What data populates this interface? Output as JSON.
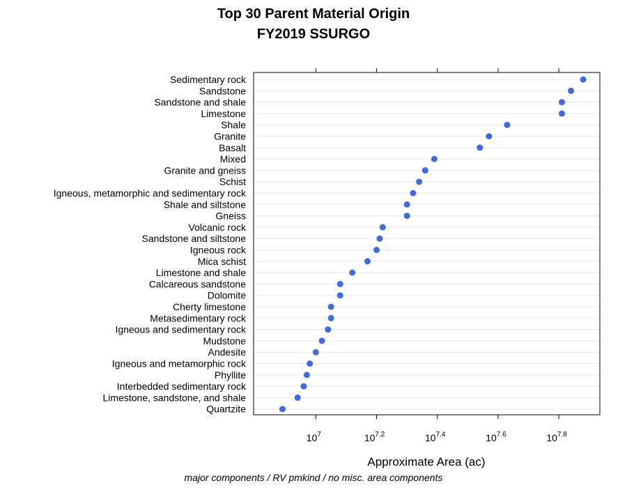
{
  "chart_data": {
    "type": "scatter",
    "title": "Top 30 Parent Material Origin",
    "subtitle": "FY2019 SSURGO",
    "xlabel": "Approximate Area (ac)",
    "ylabel": "",
    "note": "major components / RV pmkind / no misc. area components",
    "x_scale": "log10",
    "xlim_log10": [
      6.795,
      7.935
    ],
    "x_ticks": [
      {
        "base": "10",
        "exp": "7",
        "log10": 7.0
      },
      {
        "base": "10",
        "exp": "7.2",
        "log10": 7.2
      },
      {
        "base": "10",
        "exp": "7.4",
        "log10": 7.4
      },
      {
        "base": "10",
        "exp": "7.6",
        "log10": 7.6
      },
      {
        "base": "10",
        "exp": "7.8",
        "log10": 7.8
      }
    ],
    "grid": "horizontal",
    "point_color": "#4169e1",
    "categories": [
      "Sedimentary rock",
      "Sandstone",
      "Sandstone and shale",
      "Limestone",
      "Shale",
      "Granite",
      "Basalt",
      "Mixed",
      "Granite and gneiss",
      "Schist",
      "Igneous, metamorphic and sedimentary rock",
      "Shale and siltstone",
      "Gneiss",
      "Volcanic rock",
      "Sandstone and siltstone",
      "Igneous rock",
      "Mica schist",
      "Limestone and shale",
      "Calcareous sandstone",
      "Dolomite",
      "Cherty limestone",
      "Metasedimentary rock",
      "Igneous and sedimentary rock",
      "Mudstone",
      "Andesite",
      "Igneous and metamorphic rock",
      "Phyllite",
      "Interbedded sedimentary rock",
      "Limestone, sandstone, and shale",
      "Quartzite"
    ],
    "values_log10": [
      7.88,
      7.84,
      7.81,
      7.81,
      7.63,
      7.57,
      7.54,
      7.39,
      7.36,
      7.34,
      7.32,
      7.3,
      7.3,
      7.22,
      7.21,
      7.2,
      7.17,
      7.12,
      7.08,
      7.08,
      7.05,
      7.05,
      7.04,
      7.02,
      7.0,
      6.98,
      6.97,
      6.96,
      6.94,
      6.89
    ]
  }
}
